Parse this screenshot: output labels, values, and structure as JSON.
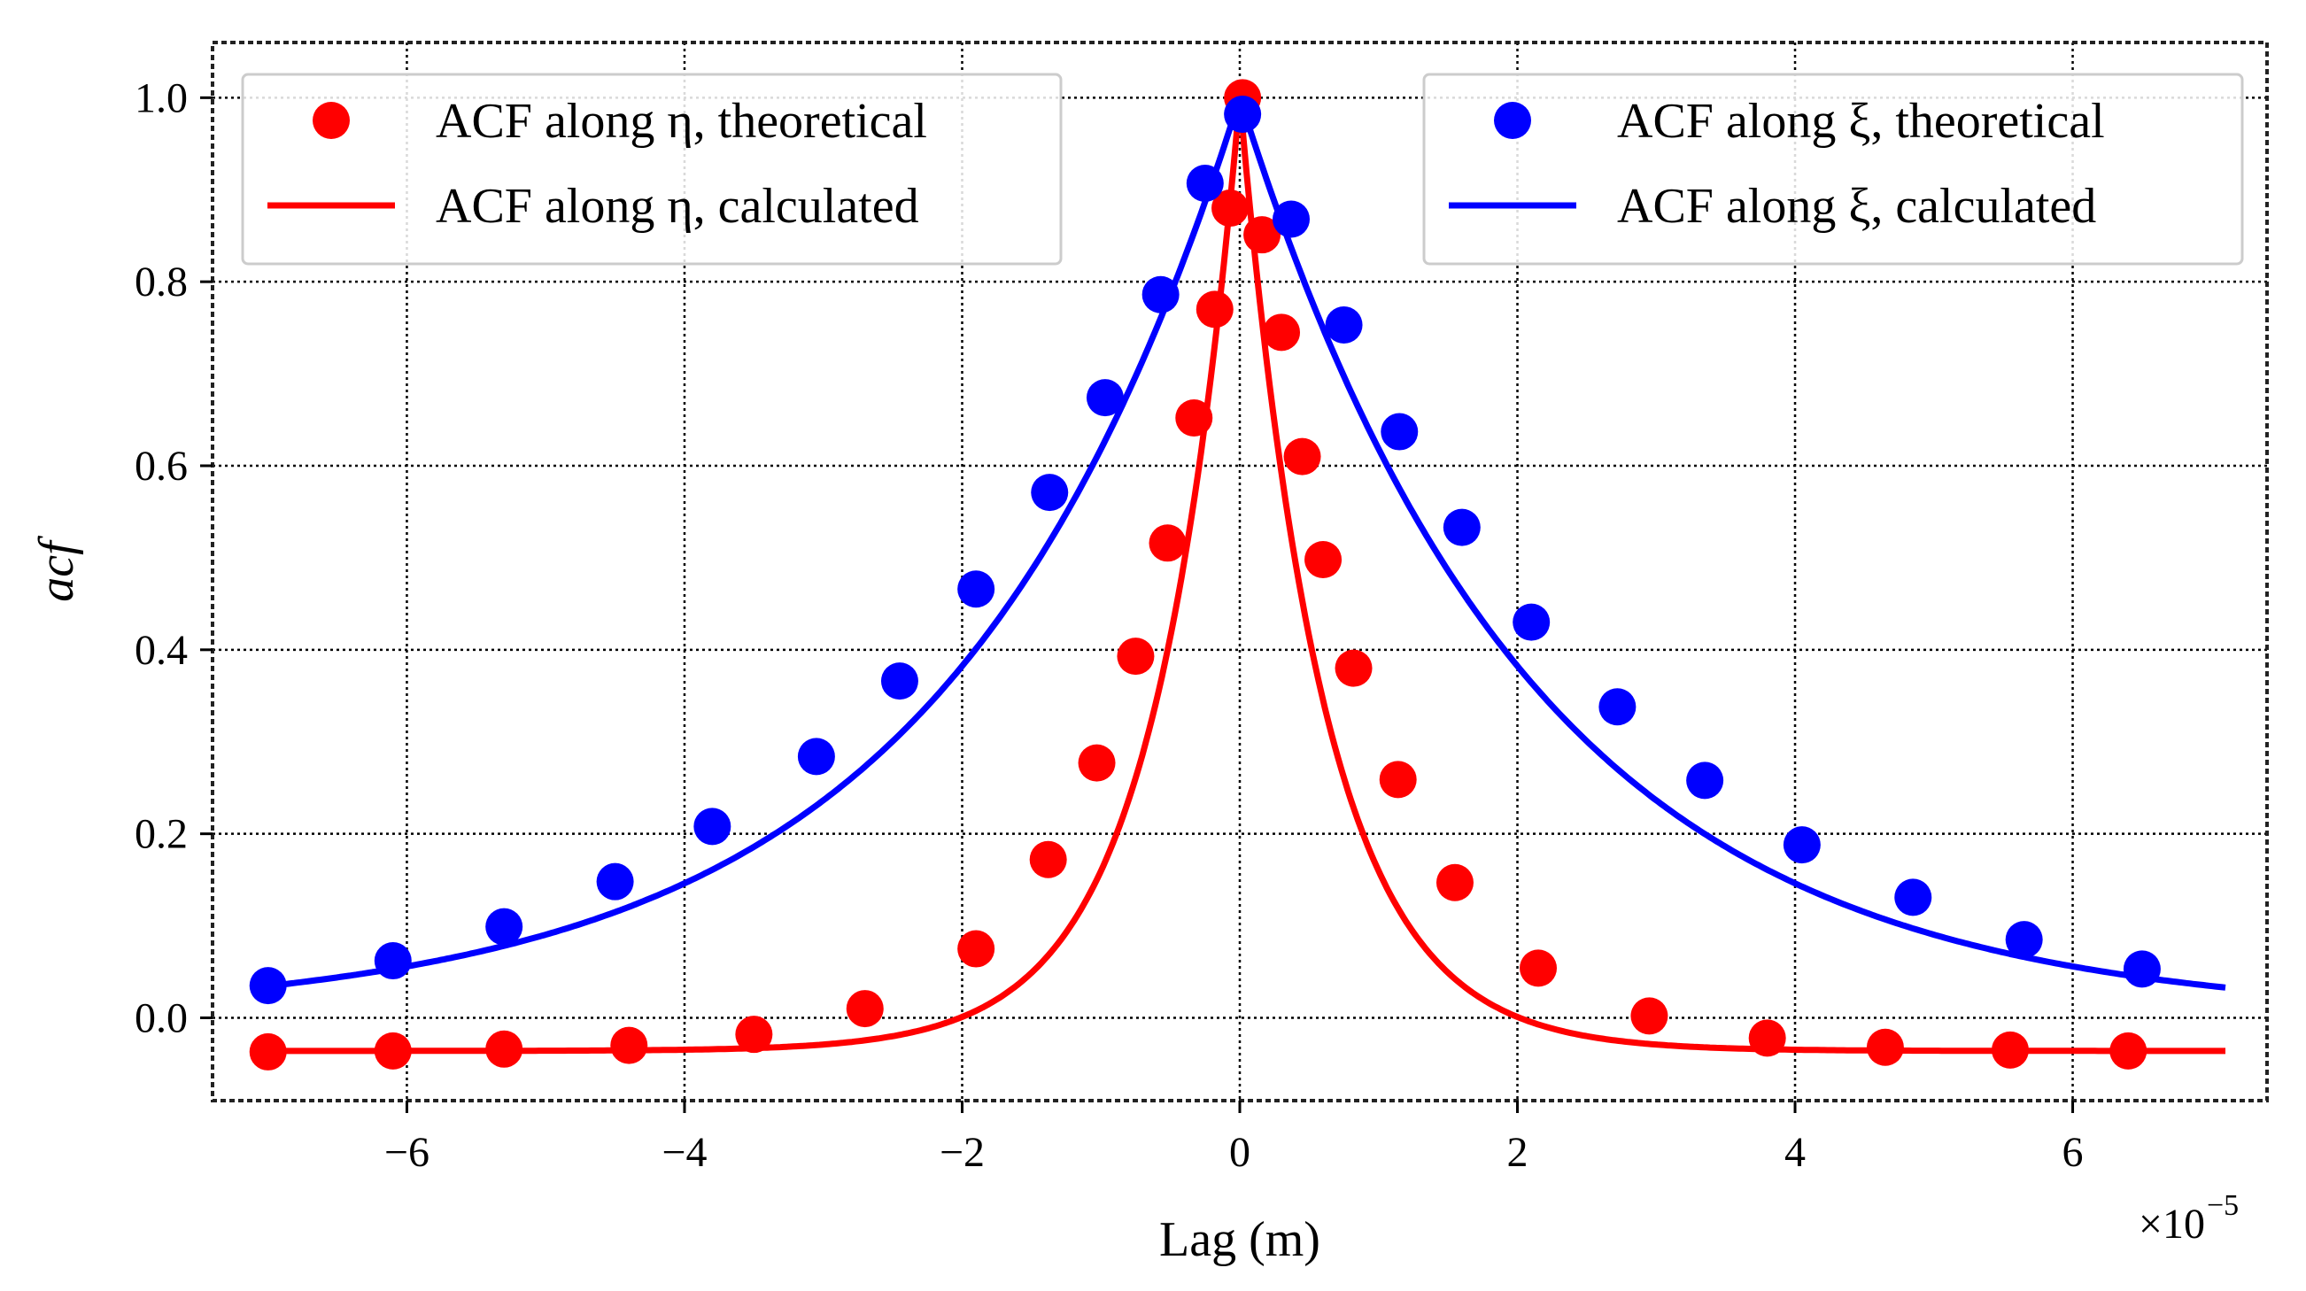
{
  "chart_data": {
    "type": "line",
    "title": "",
    "xlabel": "Lag (m)",
    "ylabel": "acf",
    "x_scale_label": "×10",
    "x_scale_exponent": "−5",
    "xlim": [
      -7.4,
      7.4
    ],
    "ylim": [
      -0.09,
      1.06
    ],
    "x_ticks": [
      -6,
      -4,
      -2,
      0,
      2,
      4,
      6
    ],
    "x_tick_labels": [
      "−6",
      "−4",
      "−2",
      "0",
      "2",
      "4",
      "6"
    ],
    "y_ticks": [
      0.0,
      0.2,
      0.4,
      0.6,
      0.8,
      1.0
    ],
    "y_tick_labels": [
      "0.0",
      "0.2",
      "0.4",
      "0.6",
      "0.8",
      "1.0"
    ],
    "grid": true,
    "colors": {
      "eta": "#ff0000",
      "xi": "#0000ff"
    },
    "legends": [
      {
        "position": "top-left",
        "entries": [
          {
            "label": "ACF along η, theoretical",
            "marker": "circle",
            "color": "#ff0000"
          },
          {
            "label": "ACF along η, calculated",
            "marker": "line",
            "color": "#ff0000"
          }
        ]
      },
      {
        "position": "top-right",
        "entries": [
          {
            "label": "ACF along ξ, theoretical",
            "marker": "circle",
            "color": "#0000ff"
          },
          {
            "label": "ACF along ξ, calculated",
            "marker": "line",
            "color": "#0000ff"
          }
        ]
      }
    ],
    "series": [
      {
        "name": "ACF along η, theoretical",
        "kind": "scatter",
        "color": "#ff0000",
        "points": [
          [
            -7.0,
            -0.037
          ],
          [
            -6.1,
            -0.036
          ],
          [
            -5.3,
            -0.034
          ],
          [
            -4.4,
            -0.03
          ],
          [
            -3.5,
            -0.018
          ],
          [
            -2.7,
            0.01
          ],
          [
            -1.9,
            0.075
          ],
          [
            -1.38,
            0.172
          ],
          [
            -1.03,
            0.277
          ],
          [
            -0.75,
            0.393
          ],
          [
            -0.52,
            0.516
          ],
          [
            -0.33,
            0.652
          ],
          [
            -0.18,
            0.77
          ],
          [
            -0.07,
            0.88
          ],
          [
            0.02,
            1.0
          ],
          [
            0.16,
            0.851
          ],
          [
            0.3,
            0.745
          ],
          [
            0.45,
            0.61
          ],
          [
            0.6,
            0.498
          ],
          [
            0.82,
            0.38
          ],
          [
            1.14,
            0.259
          ],
          [
            1.55,
            0.147
          ],
          [
            2.15,
            0.054
          ],
          [
            2.95,
            0.002
          ],
          [
            3.8,
            -0.022
          ],
          [
            4.65,
            -0.032
          ],
          [
            5.55,
            -0.035
          ],
          [
            6.4,
            -0.036
          ]
        ]
      },
      {
        "name": "ACF along η, calculated",
        "kind": "line",
        "color": "#ff0000",
        "model": {
          "floor": -0.036,
          "amplitude": 1.036,
          "decay_length": 0.6
        }
      },
      {
        "name": "ACF along ξ, theoretical",
        "kind": "scatter",
        "color": "#0000ff",
        "points": [
          [
            -7.0,
            0.035
          ],
          [
            -6.1,
            0.062
          ],
          [
            -5.3,
            0.099
          ],
          [
            -4.5,
            0.148
          ],
          [
            -3.8,
            0.208
          ],
          [
            -3.05,
            0.284
          ],
          [
            -2.45,
            0.366
          ],
          [
            -1.9,
            0.466
          ],
          [
            -1.37,
            0.571
          ],
          [
            -0.97,
            0.674
          ],
          [
            -0.57,
            0.786
          ],
          [
            -0.25,
            0.907
          ],
          [
            0.02,
            0.982
          ],
          [
            0.37,
            0.868
          ],
          [
            0.75,
            0.753
          ],
          [
            1.15,
            0.637
          ],
          [
            1.6,
            0.533
          ],
          [
            2.1,
            0.43
          ],
          [
            2.72,
            0.338
          ],
          [
            3.35,
            0.258
          ],
          [
            4.05,
            0.188
          ],
          [
            4.85,
            0.131
          ],
          [
            5.65,
            0.085
          ],
          [
            6.5,
            0.053
          ]
        ]
      },
      {
        "name": "ACF along ξ, calculated",
        "kind": "line",
        "color": "#0000ff",
        "model": {
          "floor": 0.0,
          "amplitude": 1.0,
          "decay_length": 2.08
        }
      }
    ]
  }
}
